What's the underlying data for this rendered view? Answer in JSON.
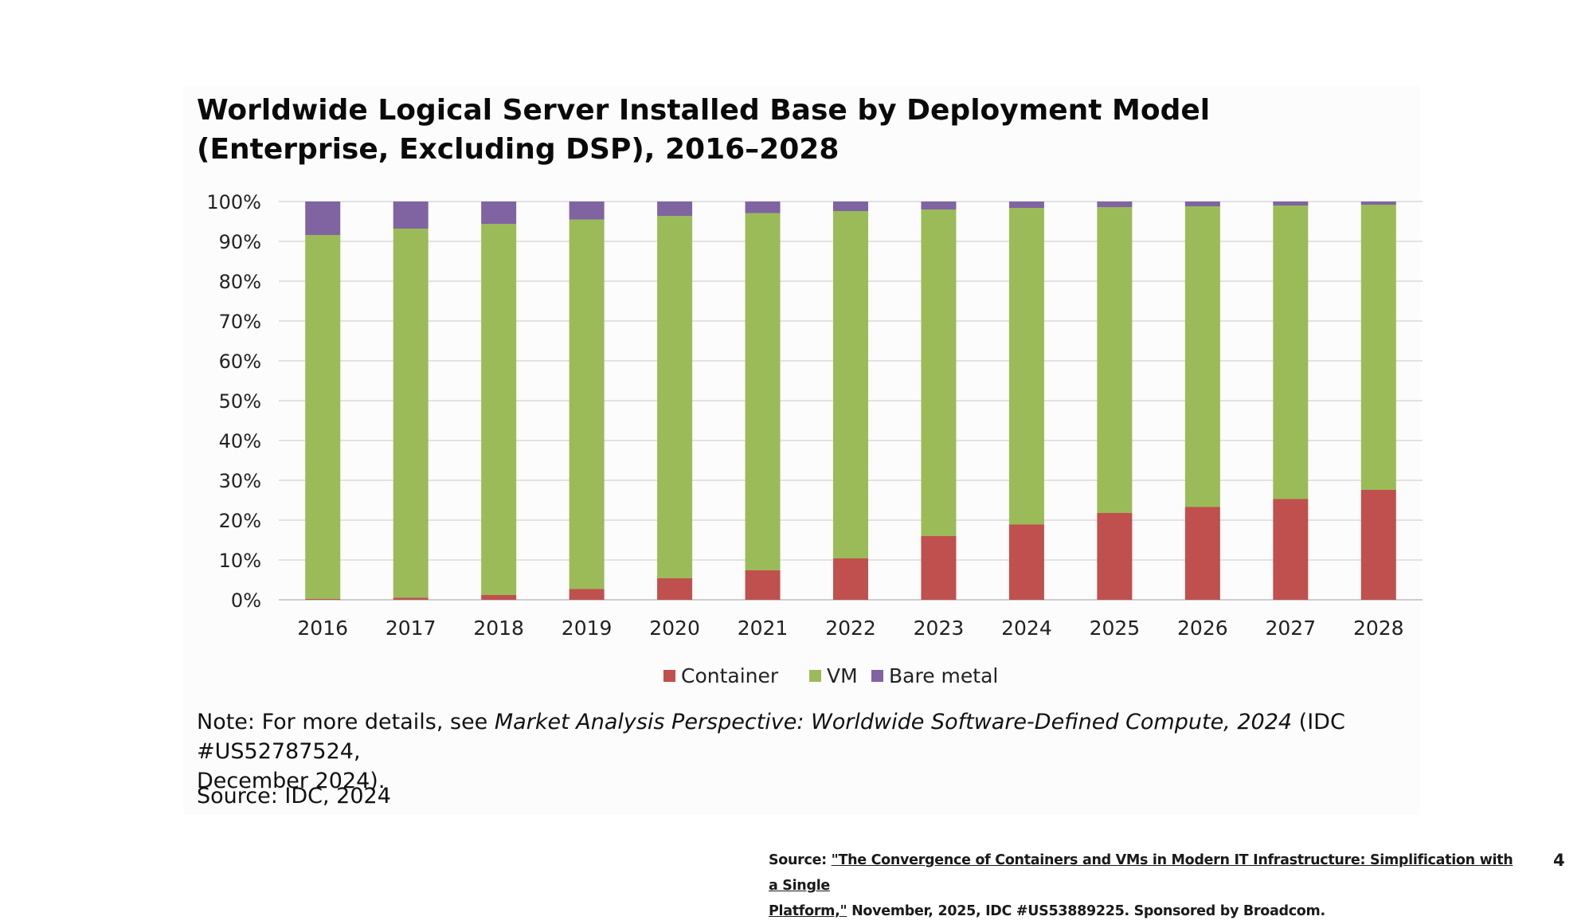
{
  "chart_data": {
    "type": "bar",
    "stacked": true,
    "title": "Worldwide Logical Server Installed Base by Deployment Model (Enterprise, Excluding DSP), 2016–2028",
    "title_lines": [
      "Worldwide Logical Server Installed Base by Deployment Model",
      "(Enterprise, Excluding DSP), 2016–2028"
    ],
    "xlabel": "",
    "ylabel": "",
    "categories": [
      "2016",
      "2017",
      "2018",
      "2019",
      "2020",
      "2021",
      "2022",
      "2023",
      "2024",
      "2025",
      "2026",
      "2027",
      "2028"
    ],
    "series": [
      {
        "name": "Container",
        "color": "#c0504d",
        "values": [
          0.2,
          0.5,
          1.2,
          2.7,
          5.4,
          7.4,
          10.4,
          16.0,
          18.9,
          21.8,
          23.3,
          25.3,
          27.6
        ]
      },
      {
        "name": "VM",
        "color": "#9bbb59",
        "values": [
          91.4,
          92.7,
          93.2,
          92.8,
          91.0,
          89.7,
          87.2,
          82.0,
          79.5,
          76.8,
          75.5,
          73.7,
          71.6
        ]
      },
      {
        "name": "Bare metal",
        "color": "#8064a2",
        "values": [
          8.4,
          6.8,
          5.6,
          4.5,
          3.6,
          2.9,
          2.4,
          2.0,
          1.6,
          1.4,
          1.2,
          1.0,
          0.8
        ]
      }
    ],
    "ylim": [
      0,
      100
    ],
    "y_ticks": [
      "0%",
      "10%",
      "20%",
      "30%",
      "40%",
      "50%",
      "60%",
      "70%",
      "80%",
      "90%",
      "100%"
    ],
    "grid": true,
    "legend_position": "bottom"
  },
  "note": {
    "prefix": "Note: For more details, see ",
    "italic": "Market Analysis Perspective: Worldwide Software-Defined Compute, 2024",
    "suffix_line1": " (IDC #US52787524,",
    "line2": "December 2024)."
  },
  "source": "Source: IDC, 2024",
  "footer": {
    "label": "Source: ",
    "link_line1": "\"The Convergence of Containers and VMs in Modern IT Infrastructure: Simplification with a Single",
    "link_line2": "Platform,\"",
    "rest": " November, 2025, IDC #US53889225. Sponsored by Broadcom."
  },
  "page_number": "4"
}
